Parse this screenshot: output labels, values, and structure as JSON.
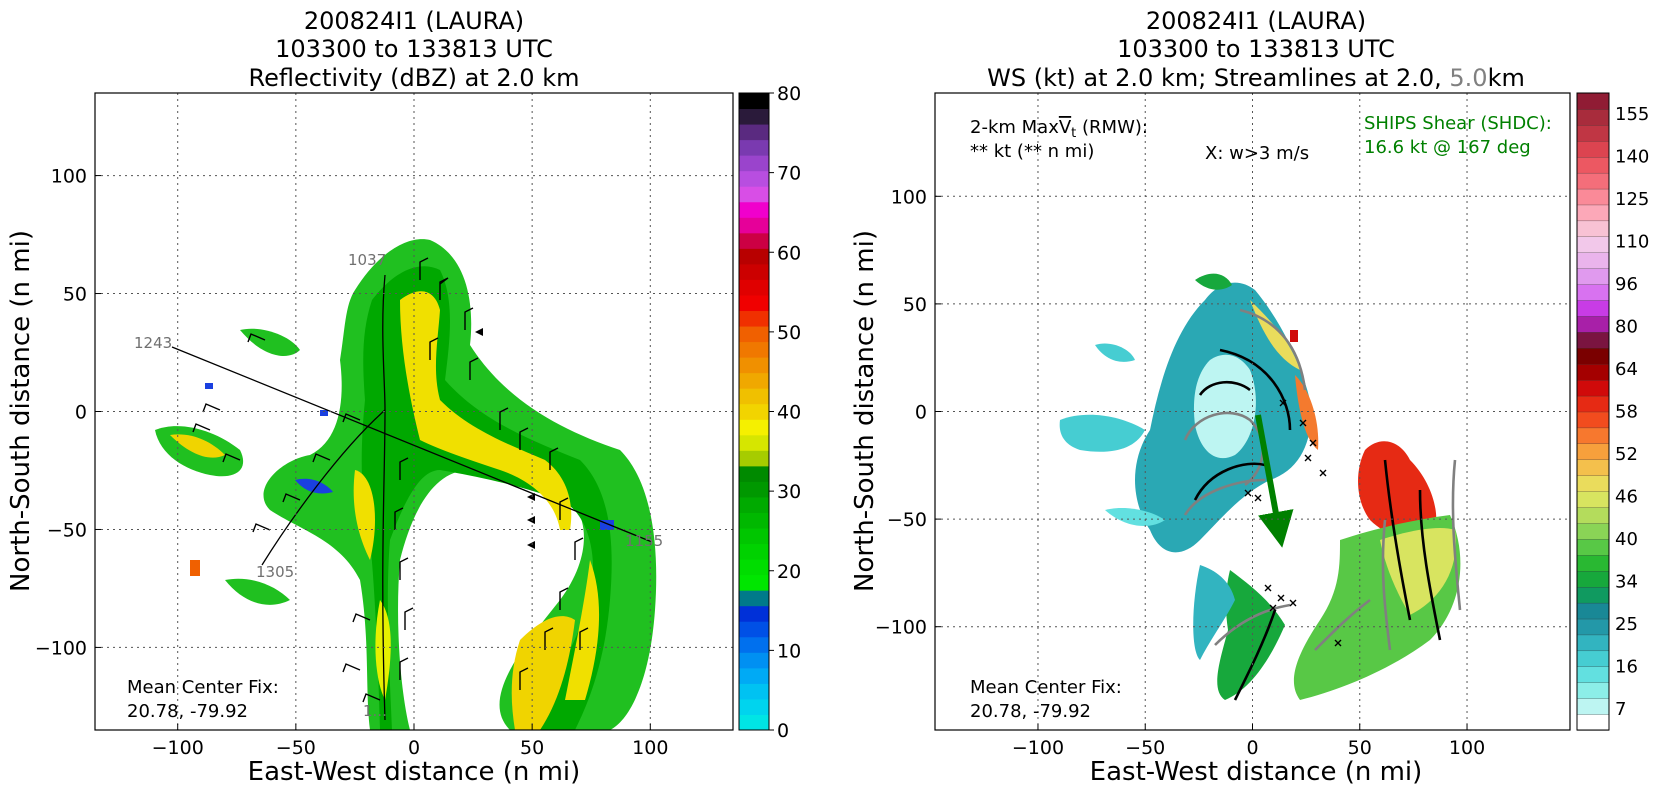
{
  "left": {
    "title_lines": [
      "200824I1 (LAURA)",
      "103300 to 133813 UTC",
      "Reflectivity (dBZ) at 2.0 km"
    ],
    "xlabel": "East-West distance (n mi)",
    "ylabel": "North-South distance (n mi)",
    "center_fix_label": "Mean Center Fix:",
    "center_fix_value": "20.78, -79.92",
    "track_labels": [
      "1243",
      "1305",
      "1037",
      "1155",
      "1..."
    ]
  },
  "right": {
    "title_lines": [
      "200824I1 (LAURA)",
      "103300 to 133813 UTC"
    ],
    "title_line3_prefix": "WS (kt) at 2.0 km; Streamlines at 2.0, ",
    "title_line3_highlight": "5.0",
    "title_line3_suffix": "km",
    "xlabel": "East-West distance (n mi)",
    "ylabel": "North-South distance (n mi)",
    "maxvt_label_prefix": "2-km Max",
    "maxvt_symbol": "V",
    "maxvt_sub": "t",
    "maxvt_label_suffix": " (RMW):",
    "maxvt_value": "** kt (** n mi)",
    "w_note": "X: w>3 m/s",
    "ships_label": "SHIPS Shear (SHDC):",
    "ships_value": "16.6 kt @ 167 deg",
    "center_fix_label": "Mean Center Fix:",
    "center_fix_value": "20.78, -79.92"
  },
  "colors": {
    "ships_green": "#008000",
    "title_gray": "#808080",
    "grid": "#555555"
  },
  "chart_data": [
    {
      "type": "heatmap",
      "title": "200824I1 (LAURA) 103300 to 133813 UTC Reflectivity (dBZ) at 2.0 km",
      "xlabel": "East-West distance (n mi)",
      "ylabel": "North-South distance (n mi)",
      "xlim": [
        -135,
        135
      ],
      "ylim": [
        -135,
        135
      ],
      "xticks": [
        -100,
        -50,
        0,
        50,
        100
      ],
      "yticks": [
        -100,
        -50,
        0,
        50,
        100
      ],
      "grid": true,
      "colorbar": {
        "ticks": [
          0,
          10,
          20,
          30,
          40,
          50,
          60,
          70,
          80
        ],
        "min": 0,
        "max": 80,
        "colors": [
          "#00e5e5",
          "#00d4ee",
          "#00c2f2",
          "#00aaf5",
          "#0090f2",
          "#0070ee",
          "#0050e6",
          "#0030d8",
          "#007a8a",
          "#00e600",
          "#00dd00",
          "#00d200",
          "#00c600",
          "#00b800",
          "#00aa00",
          "#009800",
          "#008a00",
          "#a6cc00",
          "#d6e600",
          "#f5f000",
          "#f2d400",
          "#f0c000",
          "#f0a800",
          "#f09000",
          "#f07800",
          "#f06000",
          "#f03000",
          "#f00000",
          "#e00000",
          "#cc0000",
          "#b80000",
          "#cc0044",
          "#e60099",
          "#f000cc",
          "#d84ee6",
          "#b84ee0",
          "#9a44cc",
          "#7a3ab0",
          "#5a2a80",
          "#2a1a3a",
          "#000000"
        ]
      }
    },
    {
      "type": "heatmap",
      "title": "200824I1 (LAURA) 103300 to 133813 UTC WS (kt) at 2.0 km; Streamlines at 2.0, 5.0km",
      "xlabel": "East-West distance (n mi)",
      "ylabel": "North-South distance (n mi)",
      "xlim": [
        -148,
        148
      ],
      "ylim": [
        -148,
        148
      ],
      "xticks": [
        -100,
        -50,
        0,
        50,
        100
      ],
      "yticks": [
        -100,
        -50,
        0,
        50,
        100
      ],
      "grid": true,
      "shear_vector": {
        "speed_kt": 16.6,
        "direction_deg": 167
      },
      "colorbar": {
        "tick_labels": [
          "7",
          "16",
          "25",
          "34",
          "40",
          "46",
          "52",
          "58",
          "64",
          "80",
          "96",
          "110",
          "125",
          "140",
          "155"
        ],
        "colors": [
          "#ffffff",
          "#bdf5f2",
          "#8ceee8",
          "#62e0e0",
          "#46cdd2",
          "#32b4c0",
          "#2398a8",
          "#198896",
          "#109a60",
          "#17a83c",
          "#29b832",
          "#58c846",
          "#8ad456",
          "#b4dc5c",
          "#d8e460",
          "#eadc5c",
          "#f4c04c",
          "#f7a03c",
          "#f7782e",
          "#f24c1e",
          "#e62a14",
          "#d00a0a",
          "#a40000",
          "#7a0000",
          "#7a1440",
          "#a820a8",
          "#c83ce6",
          "#d872f0",
          "#e09aee",
          "#eab4ec",
          "#f2c8ea",
          "#f8c2d4",
          "#fca8b8",
          "#fa8a98",
          "#f46e7a",
          "#ec5862",
          "#dc4450",
          "#c03644",
          "#a82c3c",
          "#901c34"
        ]
      }
    }
  ]
}
